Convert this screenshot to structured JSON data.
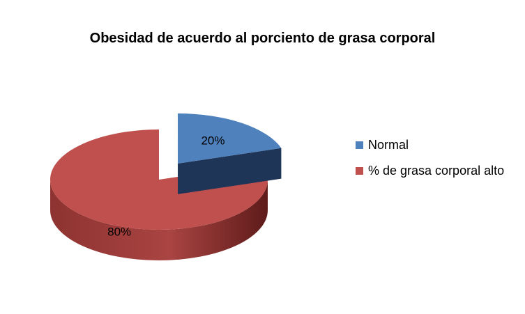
{
  "chart_data": {
    "type": "pie",
    "title": "Obesidad de acuerdo al porciento de grasa corporal",
    "slices": [
      {
        "name": "Normal",
        "value": 20,
        "label": "20%",
        "color": "#4F81BD",
        "side_color": "#1F3557",
        "exploded": true
      },
      {
        "name": "% de grasa corporal alto",
        "value": 80,
        "label": "80%",
        "color": "#C0504D",
        "side_color": "#7A2422",
        "exploded": false
      }
    ],
    "style": "3d",
    "legend_position": "right"
  }
}
